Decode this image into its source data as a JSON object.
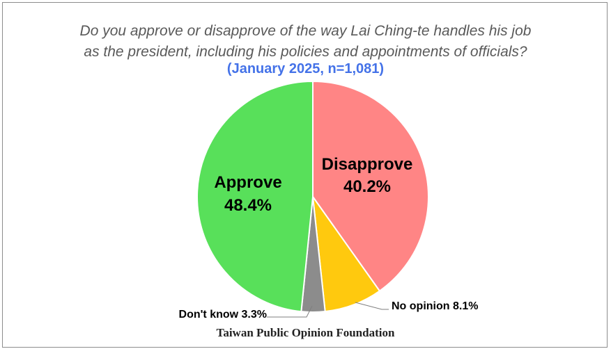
{
  "chart_data": {
    "type": "pie",
    "title_line1": "Do you approve or disapprove of the way Lai Ching-te handles his job",
    "title_line2": "as the president, including his policies and appointments of officials?",
    "subtitle": "(January 2025, n=1,081)",
    "source": "Taiwan Public Opinion Foundation",
    "slices": [
      {
        "label": "Disapprove",
        "value": 40.2,
        "display": "40.2%",
        "color": "#ff8585",
        "label_position": "inside"
      },
      {
        "label": "No opinion",
        "value": 8.1,
        "display": "8.1%",
        "color": "#ffc90e",
        "label_position": "outside"
      },
      {
        "label": "Don't know",
        "value": 3.3,
        "display": "3.3%",
        "color": "#8c8c8c",
        "label_position": "outside"
      },
      {
        "label": "Approve",
        "value": 48.4,
        "display": "48.4%",
        "color": "#58e05a",
        "label_position": "inside"
      }
    ],
    "start_angle": "12 o'clock",
    "direction": "clockwise"
  }
}
